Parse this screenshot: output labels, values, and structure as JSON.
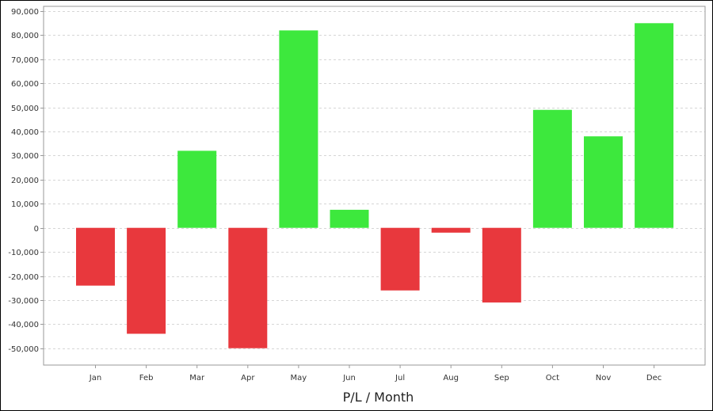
{
  "chart_data": {
    "type": "bar",
    "title": "",
    "xlabel": "P/L / Month",
    "ylabel": "",
    "categories": [
      "Jan",
      "Feb",
      "Mar",
      "Apr",
      "May",
      "Jun",
      "Jul",
      "Aug",
      "Sep",
      "Oct",
      "Nov",
      "Dec"
    ],
    "values": [
      -24000,
      -44000,
      32000,
      -50000,
      82000,
      7500,
      -26000,
      -2000,
      -31000,
      49000,
      38000,
      85000
    ],
    "ylim": [
      -57000,
      92000
    ],
    "yticks": [
      -50000,
      -40000,
      -30000,
      -20000,
      -10000,
      0,
      10000,
      20000,
      30000,
      40000,
      50000,
      60000,
      70000,
      80000,
      90000
    ],
    "ytick_labels": [
      "-50,000",
      "-40,000",
      "-30,000",
      "-20,000",
      "-10,000",
      "0",
      "10,000",
      "20,000",
      "30,000",
      "40,000",
      "50,000",
      "60,000",
      "70,000",
      "80,000",
      "90,000"
    ],
    "grid": true,
    "colors": {
      "positive": "#3de83d",
      "negative": "#e8383d"
    }
  }
}
